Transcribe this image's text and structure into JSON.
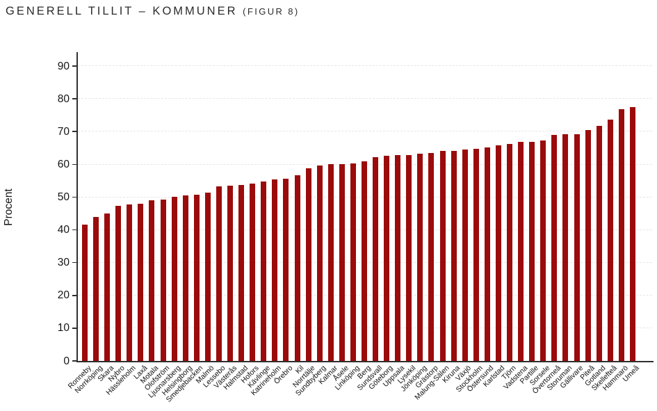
{
  "title": {
    "main": "GENERELL TILLIT – KOMMUNER",
    "figure_ref": "(FIGUR 8)"
  },
  "chart_data": {
    "type": "bar",
    "title": "Generell tillit – kommuner (Figur 8)",
    "xlabel": "",
    "ylabel": "Procent",
    "ylim": [
      0,
      90
    ],
    "yticks": [
      0,
      10,
      20,
      30,
      40,
      50,
      60,
      70,
      80,
      90
    ],
    "grid": "horizontal, light gray dashed",
    "legend": "none",
    "bar_color": "#9B0B0B",
    "axis_color": "#2f2f2f",
    "categories": [
      "Ronneby",
      "Norrköping",
      "Skara",
      "Nybro",
      "Hässleholm",
      "Laxå",
      "Motala",
      "Olofström",
      "Ljusnarsberg",
      "Helsingborg",
      "Smedjebacken",
      "Malmö",
      "Lessebo",
      "Västerås",
      "Halmstad",
      "Hofors",
      "Kävlinge",
      "Katrineholm",
      "Örebro",
      "Kil",
      "Norrtälje",
      "Sundbyberg",
      "Kalmar",
      "Åsele",
      "Linköping",
      "Berg",
      "Sundsvall",
      "Göteborg",
      "Uppsala",
      "Lysekil",
      "Jönköping",
      "Grästorp",
      "Malung-Sälen",
      "Kiruna",
      "Växjö",
      "Stockholm",
      "Östersund",
      "Karlstad",
      "Tjörn",
      "Vadstena",
      "Partille",
      "Sorsele",
      "Övertorneå",
      "Storuman",
      "Gällivare",
      "Piteå",
      "Gotland",
      "Skellefteå",
      "Hammarö",
      "Umeå"
    ],
    "values": [
      41.7,
      44.0,
      45.0,
      47.3,
      47.7,
      48.0,
      49.0,
      49.2,
      50.0,
      50.6,
      50.7,
      51.4,
      53.2,
      53.4,
      53.6,
      54.1,
      54.8,
      55.3,
      55.6,
      56.7,
      58.7,
      59.6,
      60.0,
      60.1,
      60.3,
      61.0,
      62.2,
      62.6,
      62.8,
      62.9,
      63.3,
      63.5,
      64.0,
      64.2,
      64.5,
      64.8,
      65.2,
      65.9,
      66.2,
      66.8,
      66.9,
      67.3,
      68.9,
      69.1,
      69.3,
      70.5,
      71.7,
      73.6,
      76.9,
      77.5
    ]
  }
}
